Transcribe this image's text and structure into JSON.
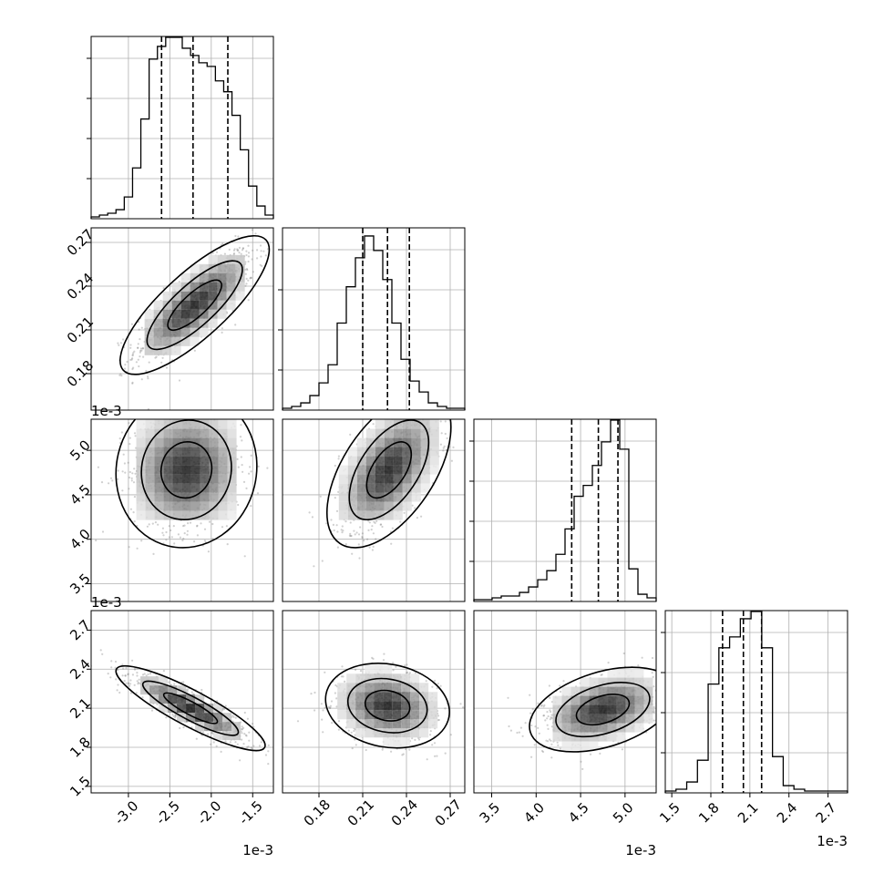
{
  "chart_data": {
    "type": "corner",
    "params": [
      {
        "key": "p0",
        "exponent_label": "1e-3",
        "range": [
          -3.45,
          -1.25
        ],
        "ticks": [
          "-3.0",
          "-2.5",
          "-2.0",
          "-1.5"
        ],
        "tick_values": [
          -3.0,
          -2.5,
          -2.0,
          -1.5
        ],
        "quantiles": [
          -2.6,
          -2.22,
          -1.8
        ]
      },
      {
        "key": "p1",
        "exponent_label": "",
        "range": [
          0.155,
          0.28
        ],
        "ticks": [
          "0.18",
          "0.21",
          "0.24",
          "0.27"
        ],
        "tick_values": [
          0.18,
          0.21,
          0.24,
          0.27
        ],
        "quantiles": [
          0.21,
          0.227,
          0.242
        ]
      },
      {
        "key": "p2",
        "exponent_label": "1e-3",
        "range": [
          3.3,
          5.35
        ],
        "ticks": [
          "3.5",
          "4.0",
          "4.5",
          "5.0"
        ],
        "tick_values": [
          3.5,
          4.0,
          4.5,
          5.0
        ],
        "quantiles": [
          4.4,
          4.7,
          4.92
        ]
      },
      {
        "key": "p3",
        "exponent_label": "1e-3",
        "range": [
          1.45,
          2.85
        ],
        "ticks": [
          "1.5",
          "1.8",
          "2.1",
          "2.4",
          "2.7"
        ],
        "tick_values": [
          1.5,
          1.8,
          2.1,
          2.4,
          2.7
        ],
        "quantiles": [
          1.89,
          2.05,
          2.19
        ]
      }
    ],
    "histograms": [
      {
        "param": 0,
        "edges_range": [
          -3.45,
          -1.25
        ],
        "counts": [
          1,
          2,
          3,
          5,
          12,
          28,
          55,
          88,
          95,
          100,
          100,
          94,
          90,
          86,
          84,
          76,
          70,
          57,
          38,
          18,
          7,
          2
        ]
      },
      {
        "param": 1,
        "edges_range": [
          0.155,
          0.28
        ],
        "counts": [
          1,
          2,
          4,
          8,
          15,
          25,
          48,
          68,
          84,
          96,
          88,
          72,
          48,
          28,
          16,
          10,
          4,
          2,
          1,
          1
        ]
      },
      {
        "param": 2,
        "edges_range": [
          3.3,
          5.35
        ],
        "counts": [
          1,
          1,
          2,
          3,
          3,
          5,
          8,
          12,
          17,
          26,
          40,
          58,
          64,
          75,
          88,
          100,
          84,
          18,
          4,
          2
        ]
      },
      {
        "param": 3,
        "edges_range": [
          1.45,
          2.85
        ],
        "counts": [
          1,
          2,
          6,
          18,
          60,
          80,
          86,
          96,
          100,
          80,
          20,
          4,
          2,
          1,
          1,
          1,
          1
        ]
      }
    ],
    "correlations": [
      {
        "x": 0,
        "y": 1,
        "center": [
          -2.2,
          0.227
        ],
        "sd": [
          0.36,
          0.019
        ],
        "rho": 0.8
      },
      {
        "x": 0,
        "y": 2,
        "center": [
          -2.3,
          4.78
        ],
        "sd": [
          0.34,
          0.35
        ],
        "rho": 0.05
      },
      {
        "x": 1,
        "y": 2,
        "center": [
          0.228,
          4.78
        ],
        "sd": [
          0.017,
          0.35
        ],
        "rho": 0.55
      },
      {
        "x": 0,
        "y": 3,
        "center": [
          -2.25,
          2.1
        ],
        "sd": [
          0.36,
          0.13
        ],
        "rho": -0.88
      },
      {
        "x": 1,
        "y": 3,
        "center": [
          0.227,
          2.12
        ],
        "sd": [
          0.017,
          0.13
        ],
        "rho": -0.15
      },
      {
        "x": 2,
        "y": 3,
        "center": [
          4.75,
          2.09
        ],
        "sd": [
          0.33,
          0.13
        ],
        "rho": 0.4
      }
    ],
    "grid": true,
    "contour_levels": 3
  }
}
